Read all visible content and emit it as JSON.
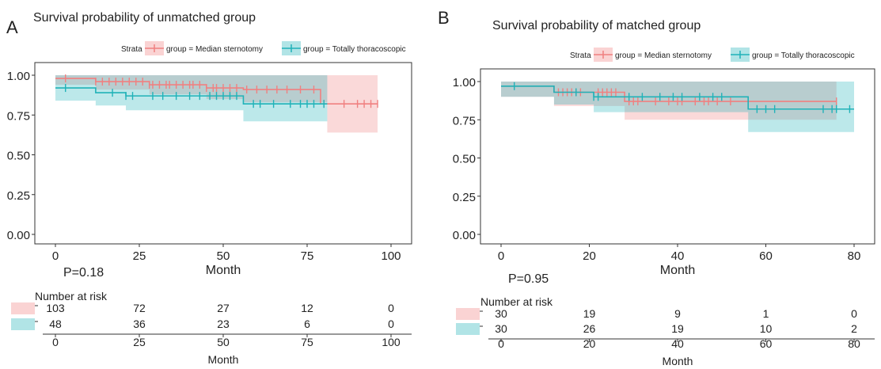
{
  "chart_data": [
    {
      "type": "line",
      "panel_letter": "A",
      "title": "Survival probability of unmatched group",
      "xlabel": "Month",
      "ylabel": "",
      "xlim": [
        0,
        100
      ],
      "ylim": [
        0,
        1
      ],
      "x_ticks": [
        0,
        25,
        50,
        75,
        100
      ],
      "y_ticks": [
        "0.00",
        "0.25",
        "0.50",
        "0.75",
        "1.00"
      ],
      "grid": false,
      "legend_position": "top",
      "legend_title": "Strata",
      "p_value": "P=0.18",
      "series": [
        {
          "name": "group = Median sternotomy",
          "color": "#f08080",
          "steps": [
            [
              0,
              0.98
            ],
            [
              12,
              0.96
            ],
            [
              28,
              0.94
            ],
            [
              45,
              0.92
            ],
            [
              56,
              0.91
            ],
            [
              79,
              0.82
            ],
            [
              96,
              0.82
            ]
          ],
          "ci_lower": [
            [
              0,
              0.94
            ],
            [
              12,
              0.91
            ],
            [
              28,
              0.88
            ],
            [
              45,
              0.85
            ],
            [
              56,
              0.83
            ],
            [
              81,
              0.64
            ],
            [
              96,
              0.64
            ]
          ],
          "ci_upper": [
            [
              0,
              1.0
            ],
            [
              96,
              1.0
            ]
          ],
          "censors": [
            3,
            12,
            14,
            16,
            18,
            20,
            22,
            24,
            26,
            28,
            29,
            31,
            33,
            34,
            36,
            38,
            40,
            41,
            43,
            45,
            47,
            48,
            50,
            52,
            54,
            57,
            60,
            63,
            66,
            69,
            73,
            77,
            80,
            86,
            90,
            92,
            94,
            96
          ]
        },
        {
          "name": "group = Totally thoracoscopic",
          "color": "#20b2b8",
          "steps": [
            [
              0,
              0.92
            ],
            [
              12,
              0.89
            ],
            [
              21,
              0.87
            ],
            [
              56,
              0.82
            ],
            [
              81,
              0.82
            ]
          ],
          "ci_lower": [
            [
              0,
              0.84
            ],
            [
              12,
              0.81
            ],
            [
              21,
              0.78
            ],
            [
              56,
              0.71
            ],
            [
              81,
              0.71
            ]
          ],
          "ci_upper": [
            [
              0,
              1.0
            ],
            [
              81,
              1.0
            ]
          ],
          "censors": [
            3,
            17,
            21,
            23,
            29,
            32,
            36,
            40,
            43,
            46,
            48,
            50,
            52,
            54,
            59,
            61,
            65,
            70,
            73,
            75,
            77,
            80
          ]
        }
      ],
      "risk_table": {
        "title": "Number at risk",
        "xlabel": "Month",
        "x_ticks": [
          0,
          25,
          50,
          75,
          100
        ],
        "rows": [
          {
            "name": "Median sternotomy",
            "color": "#f08080",
            "values": [
              "103",
              "72",
              "27",
              "12",
              "0"
            ]
          },
          {
            "name": "Totally thoracoscopic",
            "color": "#20b2b8",
            "values": [
              "48",
              "36",
              "23",
              "6",
              "0"
            ]
          }
        ]
      }
    },
    {
      "type": "line",
      "panel_letter": "B",
      "title": "Survival probability of matched group",
      "xlabel": "Month",
      "ylabel": "",
      "xlim": [
        0,
        80
      ],
      "ylim": [
        0,
        1
      ],
      "x_ticks": [
        0,
        20,
        40,
        60,
        80
      ],
      "y_ticks": [
        "0.00",
        "0.25",
        "0.50",
        "0.75",
        "1.00"
      ],
      "grid": false,
      "legend_position": "top",
      "legend_title": "Strata",
      "p_value": "P=0.95",
      "series": [
        {
          "name": "group = Median sternotomy",
          "color": "#f08080",
          "steps": [
            [
              0,
              0.97
            ],
            [
              12,
              0.93
            ],
            [
              28,
              0.87
            ],
            [
              76,
              0.87
            ]
          ],
          "ci_lower": [
            [
              0,
              0.9
            ],
            [
              12,
              0.84
            ],
            [
              28,
              0.75
            ],
            [
              76,
              0.75
            ]
          ],
          "ci_upper": [
            [
              0,
              1.0
            ],
            [
              76,
              1.0
            ]
          ],
          "censors": [
            13,
            14,
            15,
            16,
            17,
            18,
            22,
            23,
            24,
            25,
            26,
            29,
            30,
            31,
            35,
            38,
            40,
            41,
            44,
            46,
            47,
            49,
            52,
            76
          ]
        },
        {
          "name": "group = Totally thoracoscopic",
          "color": "#20b2b8",
          "steps": [
            [
              0,
              0.97
            ],
            [
              12,
              0.93
            ],
            [
              21,
              0.9
            ],
            [
              56,
              0.82
            ],
            [
              80,
              0.82
            ]
          ],
          "ci_lower": [
            [
              0,
              0.9
            ],
            [
              12,
              0.85
            ],
            [
              21,
              0.8
            ],
            [
              56,
              0.67
            ],
            [
              80,
              0.67
            ]
          ],
          "ci_upper": [
            [
              0,
              1.0
            ],
            [
              80,
              1.0
            ]
          ],
          "censors": [
            3,
            17,
            21,
            22,
            29,
            32,
            36,
            39,
            41,
            45,
            48,
            50,
            58,
            60,
            62,
            73,
            75,
            76,
            79
          ]
        }
      ],
      "risk_table": {
        "title": "Number at risk",
        "xlabel": "Month",
        "x_ticks": [
          0,
          20,
          40,
          60,
          80
        ],
        "rows": [
          {
            "name": "Median sternotomy",
            "color": "#f08080",
            "values": [
              "30",
              "19",
              "9",
              "1",
              "0"
            ]
          },
          {
            "name": "Totally thoracoscopic",
            "color": "#20b2b8",
            "values": [
              "30",
              "26",
              "19",
              "10",
              "2"
            ]
          }
        ]
      }
    }
  ]
}
